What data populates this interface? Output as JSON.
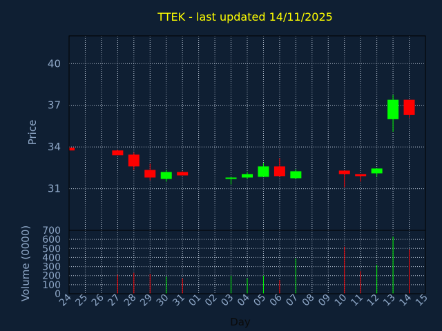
{
  "chart_data": {
    "type": "candlestick",
    "title": "TTEK - last updated 14/11/2025",
    "xlabel": "Day",
    "ylabel_price": "Price",
    "ylabel_volume": "Volume (0000)",
    "x_tick_labels": [
      "24",
      "25",
      "26",
      "27",
      "28",
      "29",
      "30",
      "31",
      "01",
      "02",
      "03",
      "04",
      "05",
      "06",
      "07",
      "08",
      "09",
      "10",
      "11",
      "12",
      "13",
      "14",
      "15"
    ],
    "price_ylim": [
      28.0,
      42.0
    ],
    "price_ticks": [
      31,
      34,
      37,
      40
    ],
    "volume_ylim": [
      0,
      700
    ],
    "volume_ticks": [
      0,
      100,
      200,
      300,
      400,
      500,
      600,
      700
    ],
    "grid": true,
    "colors": {
      "up": "#00ff00",
      "down": "#ff0000",
      "title": "#ffff00",
      "axis": "#8fa8c8",
      "background": "#0f1f33",
      "grid": "#b8c4d4"
    },
    "candles": [
      {
        "day": "24",
        "open": 33.95,
        "close": 33.75,
        "high": 34.0,
        "low": 33.7,
        "volume": 0
      },
      {
        "day": "27",
        "open": 33.75,
        "close": 33.4,
        "high": 33.8,
        "low": 33.4,
        "volume": 210
      },
      {
        "day": "28",
        "open": 33.45,
        "close": 32.6,
        "high": 33.6,
        "low": 32.35,
        "volume": 230
      },
      {
        "day": "29",
        "open": 32.35,
        "close": 31.8,
        "high": 32.8,
        "low": 31.6,
        "volume": 220
      },
      {
        "day": "30",
        "open": 31.7,
        "close": 32.2,
        "high": 32.35,
        "low": 31.5,
        "volume": 190
      },
      {
        "day": "31",
        "open": 32.2,
        "close": 31.95,
        "high": 32.25,
        "low": 31.95,
        "volume": 170
      },
      {
        "day": "03",
        "open": 31.7,
        "close": 31.8,
        "high": 31.85,
        "low": 31.3,
        "volume": 200
      },
      {
        "day": "04",
        "open": 31.8,
        "close": 32.05,
        "high": 32.2,
        "low": 31.7,
        "volume": 170
      },
      {
        "day": "05",
        "open": 31.85,
        "close": 32.6,
        "high": 32.85,
        "low": 31.85,
        "volume": 200
      },
      {
        "day": "06",
        "open": 32.6,
        "close": 31.9,
        "high": 33.2,
        "low": 31.85,
        "volume": 150
      },
      {
        "day": "07",
        "open": 31.75,
        "close": 32.25,
        "high": 32.4,
        "low": 31.7,
        "volume": 390
      },
      {
        "day": "10",
        "open": 32.3,
        "close": 32.05,
        "high": 32.3,
        "low": 31.1,
        "volume": 520
      },
      {
        "day": "11",
        "open": 32.05,
        "close": 31.9,
        "high": 32.05,
        "low": 31.5,
        "volume": 250
      },
      {
        "day": "12",
        "open": 32.1,
        "close": 32.45,
        "high": 32.45,
        "low": 31.85,
        "volume": 320
      },
      {
        "day": "13",
        "open": 36.0,
        "close": 37.4,
        "high": 37.75,
        "low": 35.1,
        "volume": 630
      },
      {
        "day": "14",
        "open": 37.4,
        "close": 36.3,
        "high": 37.4,
        "low": 36.1,
        "volume": 490
      }
    ]
  }
}
